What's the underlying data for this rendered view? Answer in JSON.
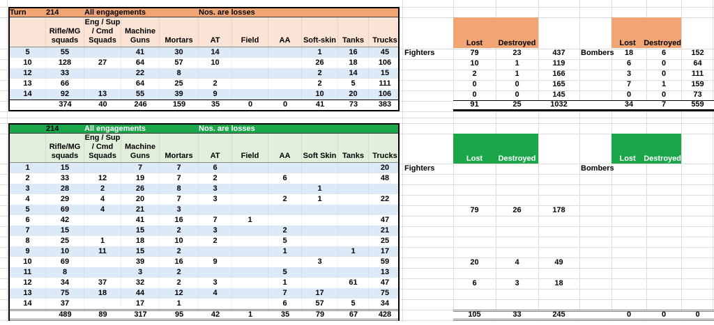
{
  "colors": {
    "orange_band": "#F2A574",
    "orange_light": "#FBE3D5",
    "green_band": "#1CA64A",
    "green_light": "#E2EFDA",
    "row_stripe_blue": "#DCE9F6",
    "grid_line": "#DCDCDC",
    "total_line_gray": "#7F7F7F"
  },
  "top_table": {
    "band": {
      "turn_label": "Turn",
      "turn_value": "214",
      "title": "All engagements",
      "note": "Nos. are losses"
    },
    "headers": [
      "",
      "Rifle/MG\nsquads",
      "Eng / Sup\n/ Cmd\nSquads",
      "Machine\nGuns",
      "Mortars",
      "AT",
      "Field",
      "AA",
      "Soft-skin",
      "Tanks",
      "Trucks"
    ],
    "rows": [
      [
        "5",
        "55",
        "",
        "41",
        "30",
        "14",
        "",
        "",
        "1",
        "16",
        "45"
      ],
      [
        "10",
        "128",
        "27",
        "64",
        "57",
        "10",
        "",
        "",
        "26",
        "18",
        "106"
      ],
      [
        "12",
        "33",
        "",
        "22",
        "8",
        "",
        "",
        "",
        "2",
        "14",
        "15"
      ],
      [
        "13",
        "66",
        "",
        "64",
        "25",
        "2",
        "",
        "",
        "2",
        "5",
        "111"
      ],
      [
        "14",
        "92",
        "13",
        "55",
        "39",
        "9",
        "",
        "",
        "10",
        "20",
        "106"
      ]
    ],
    "totals": [
      "",
      "374",
      "40",
      "246",
      "159",
      "35",
      "0",
      "0",
      "41",
      "73",
      "383"
    ]
  },
  "top_air": {
    "fighters": {
      "label": "Fighters",
      "lost_label": "Lost",
      "destroyed_label": "Destroyed",
      "rows": [
        [
          "79",
          "23",
          "437"
        ],
        [
          "10",
          "1",
          "119"
        ],
        [
          "2",
          "1",
          "166"
        ],
        [
          "0",
          "0",
          "165"
        ],
        [
          "0",
          "0",
          "145"
        ]
      ],
      "totals": [
        "91",
        "25",
        "1032"
      ]
    },
    "bombers": {
      "label": "Bombers",
      "lost_label": "Lost",
      "destroyed_label": "Destroyed",
      "rows": [
        [
          "18",
          "6",
          "152"
        ],
        [
          "6",
          "0",
          "64"
        ],
        [
          "3",
          "0",
          "111"
        ],
        [
          "7",
          "1",
          "159"
        ],
        [
          "0",
          "0",
          "73"
        ]
      ],
      "totals": [
        "34",
        "7",
        "559"
      ]
    }
  },
  "bottom_table": {
    "band": {
      "turn_label": "",
      "turn_value": "214",
      "title": "All engagements",
      "note": "Nos. are losses"
    },
    "headers": [
      "",
      "Rifle/MG\nsquads",
      "Eng / Sup\n/ Cmd\nSquads",
      "Machine\nGuns",
      "Mortars",
      "AT",
      "Field",
      "AA",
      "Soft Skin",
      "Tanks",
      "Trucks"
    ],
    "rows": [
      [
        "1",
        "15",
        "",
        "7",
        "7",
        "6",
        "",
        "",
        "",
        "",
        "20"
      ],
      [
        "2",
        "33",
        "12",
        "19",
        "7",
        "2",
        "",
        "6",
        "",
        "",
        "48"
      ],
      [
        "3",
        "28",
        "2",
        "26",
        "8",
        "3",
        "",
        "",
        "1",
        "",
        ""
      ],
      [
        "4",
        "29",
        "4",
        "20",
        "7",
        "3",
        "",
        "2",
        "1",
        "",
        "22"
      ],
      [
        "5",
        "69",
        "4",
        "21",
        "3",
        "",
        "",
        "",
        "",
        "",
        ""
      ],
      [
        "6",
        "42",
        "",
        "41",
        "16",
        "7",
        "1",
        "",
        "",
        "",
        "47"
      ],
      [
        "7",
        "15",
        "",
        "15",
        "2",
        "3",
        "",
        "2",
        "",
        "",
        "21"
      ],
      [
        "8",
        "25",
        "1",
        "18",
        "10",
        "2",
        "",
        "5",
        "",
        "",
        "25"
      ],
      [
        "9",
        "10",
        "11",
        "15",
        "2",
        "",
        "",
        "1",
        "",
        "1",
        "17"
      ],
      [
        "10",
        "69",
        "",
        "39",
        "16",
        "9",
        "",
        "",
        "3",
        "",
        "59"
      ],
      [
        "11",
        "8",
        "",
        "3",
        "2",
        "",
        "",
        "5",
        "",
        "",
        "13"
      ],
      [
        "12",
        "34",
        "37",
        "32",
        "2",
        "3",
        "",
        "1",
        "",
        "61",
        "47"
      ],
      [
        "13",
        "75",
        "18",
        "44",
        "12",
        "4",
        "",
        "7",
        "17",
        "",
        "75"
      ],
      [
        "14",
        "37",
        "",
        "17",
        "1",
        "",
        "",
        "6",
        "57",
        "5",
        "34"
      ]
    ],
    "totals": [
      "",
      "489",
      "89",
      "317",
      "95",
      "42",
      "1",
      "35",
      "79",
      "67",
      "428"
    ]
  },
  "bottom_air": {
    "fighters": {
      "label": "Fighters",
      "lost_label": "Lost",
      "destroyed_label": "Destroyed",
      "entries": [
        {
          "row": "5",
          "values": [
            "79",
            "26",
            "178"
          ]
        },
        {
          "row": "10",
          "values": [
            "20",
            "4",
            "49"
          ]
        },
        {
          "row": "12",
          "values": [
            "6",
            "3",
            "18"
          ]
        }
      ],
      "totals": [
        "105",
        "33",
        "245"
      ]
    },
    "bombers": {
      "label": "Bombers",
      "lost_label": "Lost",
      "destroyed_label": "Destroyed",
      "entries": [],
      "totals": [
        "0",
        "0",
        "0"
      ]
    }
  }
}
